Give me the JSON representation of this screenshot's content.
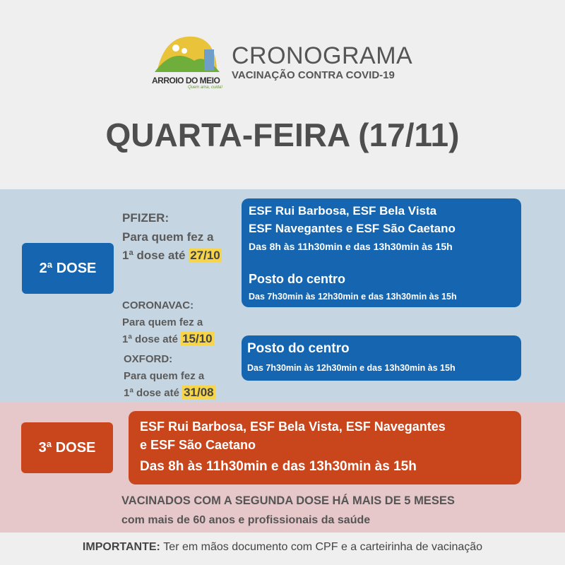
{
  "header": {
    "logo_text": "ARROIO DO MEIO",
    "logo_tagline": "Quem ama, cuida!",
    "title": "CRONOGRAMA",
    "subtitle": "VACINAÇÃO CONTRA COVID-19",
    "day": "QUARTA-FEIRA (17/11)"
  },
  "dose2": {
    "label": "2ª DOSE",
    "pfizer": {
      "name": "PFIZER:",
      "line1": "Para quem fez a",
      "line2": "1ª dose até",
      "date": "27/10"
    },
    "coronavac": {
      "name": "CORONAVAC:",
      "line1": "Para quem fez a",
      "line2": "1ª dose até",
      "date": "15/10"
    },
    "oxford": {
      "name": "OXFORD:",
      "line1": "Para quem fez a",
      "line2": "1ª dose até",
      "date": "31/08"
    },
    "box1": {
      "loc1": "ESF Rui Barbosa, ESF Bela Vista",
      "loc2": "ESF Navegantes e ESF São Caetano",
      "hours1": "Das 8h às 11h30min e das 13h30min às 15h",
      "loc3": "Posto do centro",
      "hours2": "Das 7h30min às 12h30min e das 13h30min às 15h"
    },
    "box2": {
      "loc": "Posto do centro",
      "hours": "Das 7h30min às 12h30min e das 13h30min às 15h"
    }
  },
  "dose3": {
    "label": "3ª DOSE",
    "loc1": "ESF Rui Barbosa, ESF Bela Vista, ESF Navegantes",
    "loc2": "e ESF São Caetano",
    "hours": "Das 8h às 11h30min e das 13h30min às 15h",
    "note1": "VACINADOS COM A SEGUNDA DOSE HÁ MAIS DE 5 MESES",
    "note2": "com mais de 60 anos e profissionais da saúde"
  },
  "footer": {
    "important": "IMPORTANTE:",
    "text": "Ter em mãos documento com CPF e a carteirinha de vacinação"
  },
  "colors": {
    "blue": "#1565b0",
    "orange": "#c9461c",
    "highlight": "#f7d54a",
    "blue_band": "#c5d6e2",
    "pink_band": "#e6c7ca"
  }
}
